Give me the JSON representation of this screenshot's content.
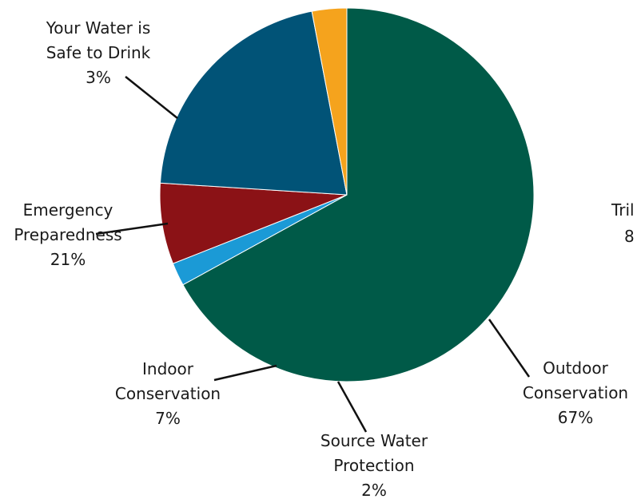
{
  "chart_data": {
    "type": "pie",
    "title": "",
    "slices": [
      {
        "label_lines": [
          "Outdoor",
          "Conservation",
          "67%"
        ],
        "value": 67,
        "color": "#005a48"
      },
      {
        "label_lines": [
          "Source Water",
          "Protection",
          "2%"
        ],
        "value": 2,
        "color": "#1b9ad6"
      },
      {
        "label_lines": [
          "Indoor",
          "Conservation",
          "7%"
        ],
        "value": 7,
        "color": "#8b1216"
      },
      {
        "label_lines": [
          "Emergency",
          "Preparedness",
          "21%"
        ],
        "value": 21,
        "color": "#015377"
      },
      {
        "label_lines": [
          "Your Water is",
          "Safe to Drink",
          "3%"
        ],
        "value": 3,
        "color": "#f5a31d"
      }
    ],
    "cropped_label_lines": [
      "Tril",
      "8"
    ],
    "start_direction": "top",
    "direction": "clockwise"
  }
}
